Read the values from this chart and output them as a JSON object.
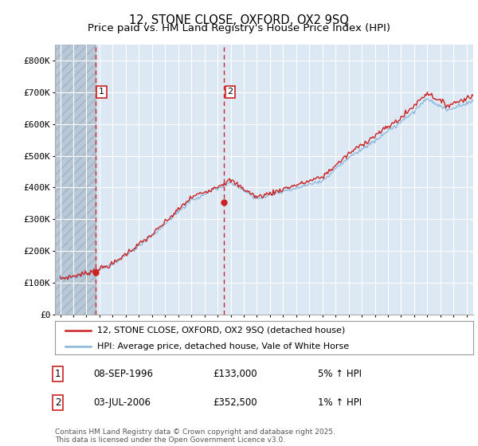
{
  "title_line1": "12, STONE CLOSE, OXFORD, OX2 9SQ",
  "title_line2": "Price paid vs. HM Land Registry's House Price Index (HPI)",
  "ylim": [
    0,
    850000
  ],
  "yticks": [
    0,
    100000,
    200000,
    300000,
    400000,
    500000,
    600000,
    700000,
    800000
  ],
  "ytick_labels": [
    "£0",
    "£100K",
    "£200K",
    "£300K",
    "£400K",
    "£500K",
    "£600K",
    "£700K",
    "£800K"
  ],
  "xlim_start": 1993.6,
  "xlim_end": 2025.5,
  "background_color": "#ffffff",
  "plot_bg_color": "#dce9f5",
  "grid_color": "#ffffff",
  "hatch_region_end": 1996.69,
  "hatch_facecolor": "#c8d4e0",
  "sale1_x": 1996.69,
  "sale1_y": 133000,
  "sale1_label": "1",
  "sale2_x": 2006.51,
  "sale2_y": 352500,
  "sale2_label": "2",
  "vline_color": "#cc2222",
  "dot_color": "#cc2222",
  "prop_line_color": "#cc2222",
  "hpi_line_color": "#88b4d8",
  "legend_entry1": "12, STONE CLOSE, OXFORD, OX2 9SQ (detached house)",
  "legend_entry2": "HPI: Average price, detached house, Vale of White Horse",
  "annotation1_num": "1",
  "annotation1_date": "08-SEP-1996",
  "annotation1_price": "£133,000",
  "annotation1_hpi": "5% ↑ HPI",
  "annotation2_num": "2",
  "annotation2_date": "03-JUL-2006",
  "annotation2_price": "£352,500",
  "annotation2_hpi": "1% ↑ HPI",
  "footer": "Contains HM Land Registry data © Crown copyright and database right 2025.\nThis data is licensed under the Open Government Licence v3.0.",
  "title_fontsize": 10.5,
  "subtitle_fontsize": 9.5,
  "tick_fontsize": 8,
  "legend_fontsize": 8,
  "ann_fontsize": 8.5,
  "footer_fontsize": 6.5
}
